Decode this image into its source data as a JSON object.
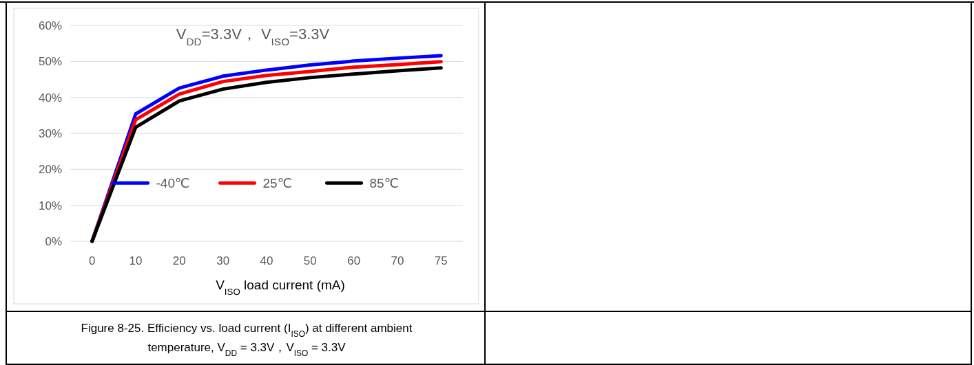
{
  "chart_data": {
    "type": "line",
    "title": "V$_{DD}$=3.3V，  V$_{ISO}$=3.3V",
    "xlabel": "V$_{ISO}$ load current (mA)",
    "categories": [
      "0",
      "10",
      "20",
      "30",
      "40",
      "50",
      "60",
      "70",
      "75"
    ],
    "series": [
      {
        "name": "-40℃",
        "color": "#0000ff",
        "values": [
          0,
          35.4,
          42.6,
          45.9,
          47.6,
          49.0,
          50.1,
          50.9,
          51.6
        ]
      },
      {
        "name": "25℃",
        "color": "#ff0000",
        "values": [
          0,
          33.8,
          40.9,
          44.4,
          46.1,
          47.2,
          48.4,
          49.1,
          49.9
        ]
      },
      {
        "name": "85℃",
        "color": "#000000",
        "values": [
          0,
          31.7,
          39.0,
          42.3,
          44.2,
          45.5,
          46.5,
          47.4,
          48.2
        ]
      }
    ],
    "ylim": [
      0,
      60
    ],
    "yticks": [
      {
        "value": 0,
        "label": "0%"
      },
      {
        "value": 10,
        "label": "10%"
      },
      {
        "value": 20,
        "label": "20%"
      },
      {
        "value": 30,
        "label": "30%"
      },
      {
        "value": 40,
        "label": "40%"
      },
      {
        "value": 50,
        "label": "50%"
      },
      {
        "value": 60,
        "label": "60%"
      }
    ],
    "grid": "y",
    "legend": "bottom",
    "marker": "none",
    "line_style": "solid",
    "annotations": [
      "Figure 8-25.  Efficiency vs. load current (I$_{ISO}$) at different ambient",
      "temperature,  V$_{DD}$ = 3.3V，V$_{ISO}$ = 3.3V"
    ]
  }
}
